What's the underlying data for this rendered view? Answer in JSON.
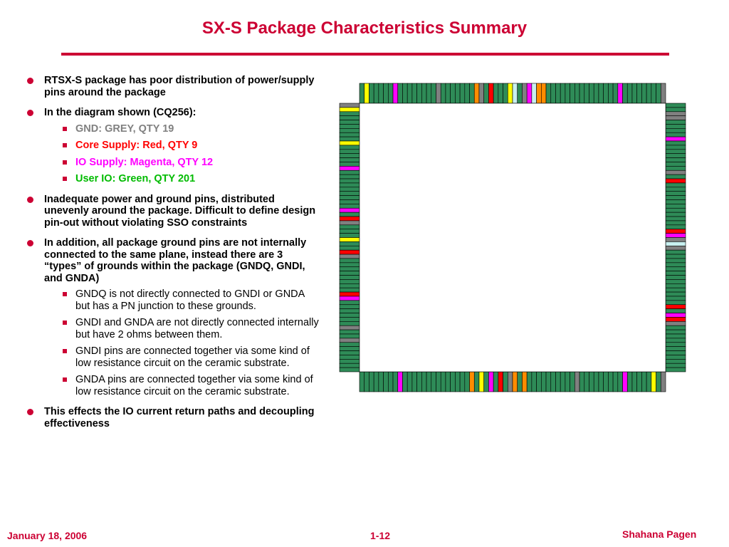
{
  "title": "SX-S Package Characteristics Summary",
  "bullets": [
    "RTSX-S package has poor distribution of power/supply pins around the package",
    "In the diagram shown (CQ256):",
    "Inadequate power and ground pins, distributed unevenly around the package. Difficult to define design pin-out without violating SSO constraints",
    "In addition, all package ground pins are not internally connected to the same plane, instead there are 3 “types” of grounds within the package (GNDQ, GNDI, and GNDA)",
    "This effects the IO current return paths and decoupling effectiveness"
  ],
  "legend": [
    {
      "text": "GND: GREY, QTY 19",
      "color": "#808080"
    },
    {
      "text": "Core Supply: Red, QTY 9",
      "color": "#ff0000"
    },
    {
      "text": "IO Supply: Magenta, QTY 12",
      "color": "#ff00ff"
    },
    {
      "text": "User IO: Green, QTY 201",
      "color": "#00bb00"
    }
  ],
  "ground_notes": [
    "GNDQ is not directly connected to GNDI or GNDA but has a PN junction to these grounds.",
    "GNDI and GNDA are not directly connected internally but have 2 ohms between them.",
    "GNDI pins are connected together via some kind of low resistance circuit on the ceramic substrate.",
    "GNDA pins are connected together via some kind of low resistance circuit on the ceramic substrate."
  ],
  "footer": {
    "date": "January 18, 2006",
    "page": "1-12",
    "author": "Shahana Pagen"
  },
  "colors": {
    "accent": "#cc0033",
    "pin_io": "#2e8b57",
    "pin_gnd": "#808080",
    "pin_core": "#ff0000",
    "pin_io_supply": "#ff00ff",
    "pin_yellow": "#ffff00",
    "pin_orange": "#ff8c00",
    "pin_light": "#c8f0f0"
  }
}
